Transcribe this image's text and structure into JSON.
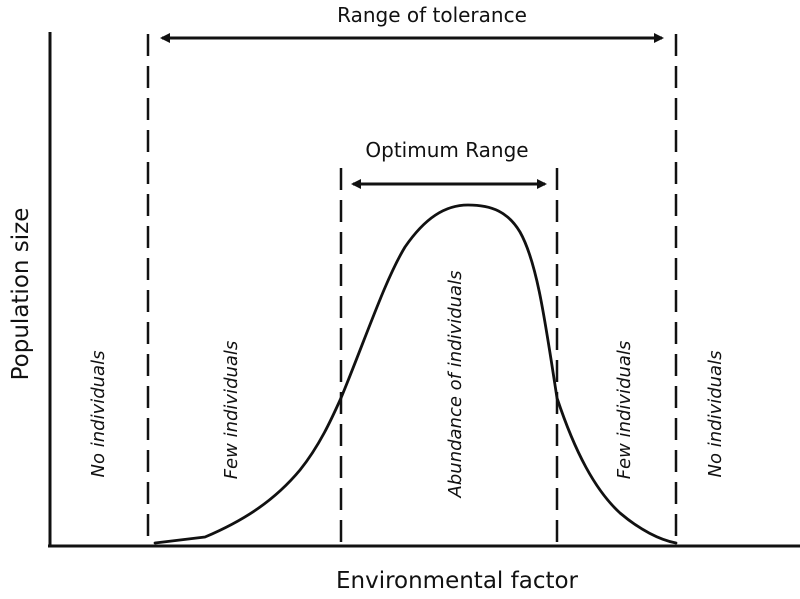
{
  "diagram": {
    "axes": {
      "x_title": "Environmental factor",
      "y_title": "Population size"
    },
    "ranges": {
      "tolerance": "Range of tolerance",
      "optimum": "Optimum Range"
    },
    "zones": {
      "left_outer": "No individuals",
      "left_inner": "Few individuals",
      "center": "Abundance of individuals",
      "right_inner": "Few individuals",
      "right_outer": "No individuals"
    }
  }
}
